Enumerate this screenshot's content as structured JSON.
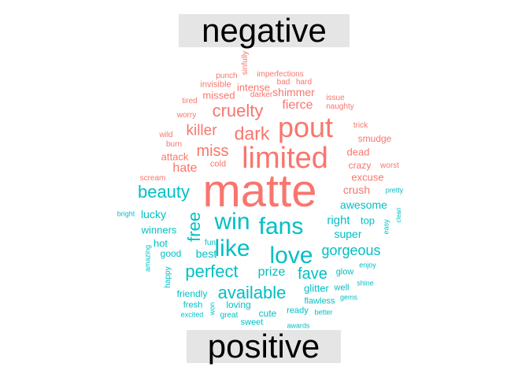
{
  "colors": {
    "negative": "#F8766D",
    "positive": "#00BFC4"
  },
  "groups": {
    "negative": "negative",
    "positive": "positive"
  },
  "words": [
    {
      "t": "matte",
      "c": "negative"
    },
    {
      "t": "pout",
      "c": "negative"
    },
    {
      "t": "limited",
      "c": "negative"
    },
    {
      "t": "dark",
      "c": "negative"
    },
    {
      "t": "cruelty",
      "c": "negative"
    },
    {
      "t": "killer",
      "c": "negative"
    },
    {
      "t": "miss",
      "c": "negative"
    },
    {
      "t": "fierce",
      "c": "negative"
    },
    {
      "t": "hate",
      "c": "negative"
    },
    {
      "t": "attack",
      "c": "negative"
    },
    {
      "t": "crush",
      "c": "negative"
    },
    {
      "t": "excuse",
      "c": "negative"
    },
    {
      "t": "crazy",
      "c": "negative"
    },
    {
      "t": "dead",
      "c": "negative"
    },
    {
      "t": "smudge",
      "c": "negative"
    },
    {
      "t": "shimmer",
      "c": "negative"
    },
    {
      "t": "intense",
      "c": "negative"
    },
    {
      "t": "missed",
      "c": "negative"
    },
    {
      "t": "invisible",
      "c": "negative"
    },
    {
      "t": "imperfections",
      "c": "negative"
    },
    {
      "t": "bad",
      "c": "negative"
    },
    {
      "t": "hard",
      "c": "negative"
    },
    {
      "t": "darker",
      "c": "negative"
    },
    {
      "t": "issue",
      "c": "negative"
    },
    {
      "t": "naughty",
      "c": "negative"
    },
    {
      "t": "tired",
      "c": "negative"
    },
    {
      "t": "worry",
      "c": "negative"
    },
    {
      "t": "trick",
      "c": "negative"
    },
    {
      "t": "wild",
      "c": "negative"
    },
    {
      "t": "burn",
      "c": "negative"
    },
    {
      "t": "cold",
      "c": "negative"
    },
    {
      "t": "worst",
      "c": "negative"
    },
    {
      "t": "scream",
      "c": "negative"
    },
    {
      "t": "punch",
      "c": "negative"
    },
    {
      "t": "sinfully",
      "c": "negative"
    },
    {
      "t": "win",
      "c": "positive"
    },
    {
      "t": "fans",
      "c": "positive"
    },
    {
      "t": "like",
      "c": "positive"
    },
    {
      "t": "love",
      "c": "positive"
    },
    {
      "t": "beauty",
      "c": "positive"
    },
    {
      "t": "free",
      "c": "positive"
    },
    {
      "t": "perfect",
      "c": "positive"
    },
    {
      "t": "available",
      "c": "positive"
    },
    {
      "t": "gorgeous",
      "c": "positive"
    },
    {
      "t": "fave",
      "c": "positive"
    },
    {
      "t": "prize",
      "c": "positive"
    },
    {
      "t": "awesome",
      "c": "positive"
    },
    {
      "t": "right",
      "c": "positive"
    },
    {
      "t": "top",
      "c": "positive"
    },
    {
      "t": "super",
      "c": "positive"
    },
    {
      "t": "lucky",
      "c": "positive"
    },
    {
      "t": "winners",
      "c": "positive"
    },
    {
      "t": "hot",
      "c": "positive"
    },
    {
      "t": "good",
      "c": "positive"
    },
    {
      "t": "best",
      "c": "positive"
    },
    {
      "t": "fun",
      "c": "positive"
    },
    {
      "t": "glitter",
      "c": "positive"
    },
    {
      "t": "glow",
      "c": "positive"
    },
    {
      "t": "well",
      "c": "positive"
    },
    {
      "t": "enjoy",
      "c": "positive"
    },
    {
      "t": "shine",
      "c": "positive"
    },
    {
      "t": "gems",
      "c": "positive"
    },
    {
      "t": "flawless",
      "c": "positive"
    },
    {
      "t": "friendly",
      "c": "positive"
    },
    {
      "t": "fresh",
      "c": "positive"
    },
    {
      "t": "loving",
      "c": "positive"
    },
    {
      "t": "cute",
      "c": "positive"
    },
    {
      "t": "ready",
      "c": "positive"
    },
    {
      "t": "better",
      "c": "positive"
    },
    {
      "t": "excited",
      "c": "positive"
    },
    {
      "t": "won",
      "c": "positive"
    },
    {
      "t": "great",
      "c": "positive"
    },
    {
      "t": "sweet",
      "c": "positive"
    },
    {
      "t": "awards",
      "c": "positive"
    },
    {
      "t": "happy",
      "c": "positive"
    },
    {
      "t": "amazing",
      "c": "positive"
    },
    {
      "t": "bright",
      "c": "positive"
    },
    {
      "t": "pretty",
      "c": "positive"
    },
    {
      "t": "easy",
      "c": "positive"
    },
    {
      "t": "clean",
      "c": "positive"
    }
  ]
}
